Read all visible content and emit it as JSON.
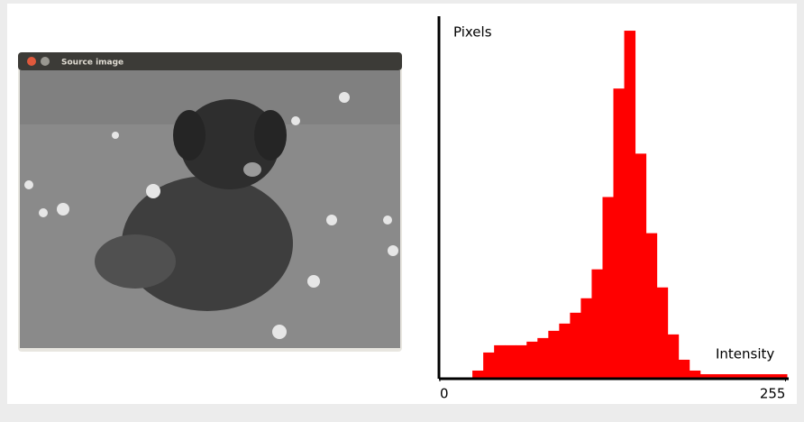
{
  "window": {
    "title": "Source image"
  },
  "chart_data": {
    "type": "histogram",
    "y_label": "Pixels",
    "x_label": "Intensity",
    "color": "#ff0000",
    "bins": [
      0,
      8,
      16,
      24,
      32,
      40,
      48,
      56,
      64,
      72,
      80,
      88,
      96,
      104,
      112,
      120,
      128,
      136,
      144,
      152,
      160,
      168,
      176,
      184,
      192,
      200,
      208,
      216,
      224,
      232,
      240,
      248,
      256
    ],
    "values": [
      0,
      0,
      0,
      2,
      7,
      9,
      9,
      9,
      10,
      11,
      13,
      15,
      18,
      22,
      30,
      50,
      80,
      96,
      62,
      40,
      25,
      12,
      5,
      2,
      1,
      1,
      1,
      1,
      1,
      1,
      1,
      1
    ],
    "xlim": [
      0,
      256
    ],
    "ylim": [
      0,
      100
    ],
    "xticks": [
      0,
      255
    ]
  }
}
